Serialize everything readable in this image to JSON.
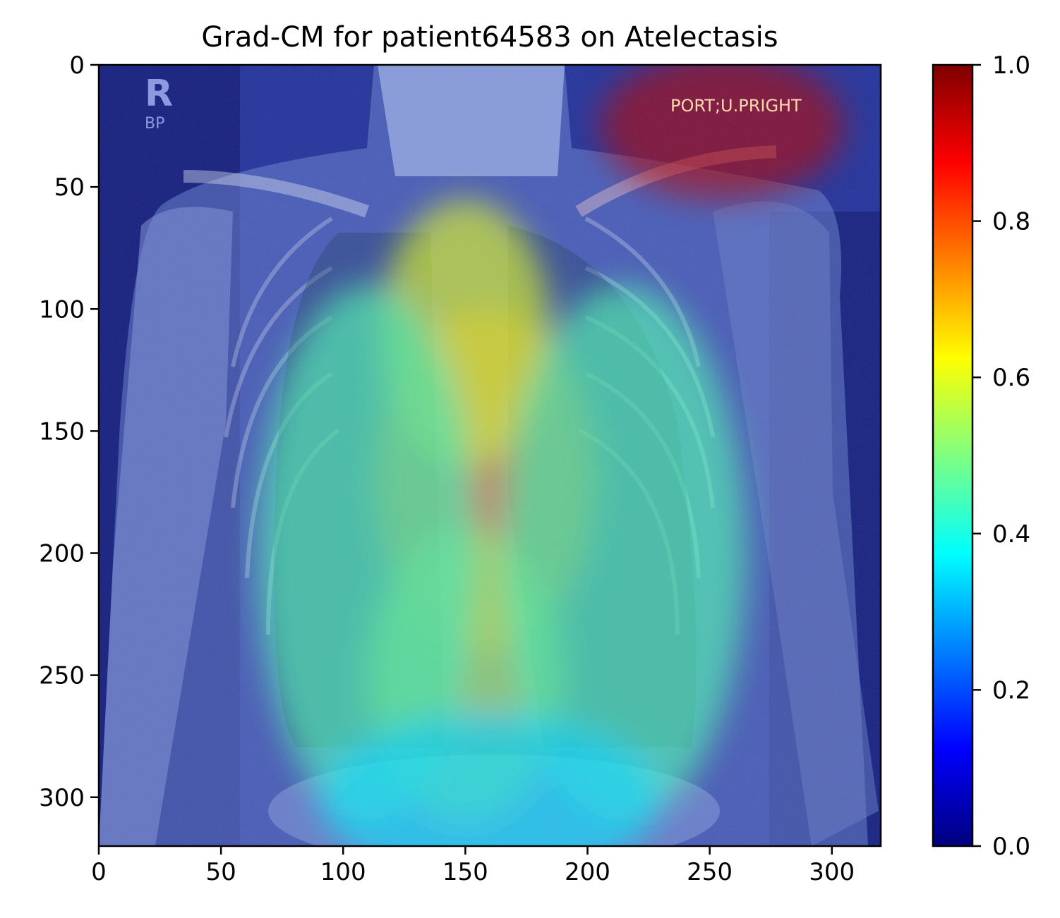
{
  "chart_data": {
    "type": "heatmap",
    "title": "Grad-CM for patient64583 on Atelectasis",
    "xlabel": "",
    "ylabel": "",
    "xlim": [
      0,
      320
    ],
    "ylim": [
      320,
      0
    ],
    "x_ticks": [
      0,
      50,
      100,
      150,
      200,
      250,
      300
    ],
    "y_ticks": [
      0,
      50,
      100,
      150,
      200,
      250,
      300
    ],
    "x_tick_labels": [
      "0",
      "50",
      "100",
      "150",
      "200",
      "250",
      "300"
    ],
    "y_tick_labels": [
      "0",
      "50",
      "100",
      "150",
      "200",
      "250",
      "300"
    ],
    "colorbar": {
      "colormap": "jet",
      "range": [
        0.0,
        1.0
      ],
      "ticks": [
        0.0,
        0.2,
        0.4,
        0.6,
        0.8,
        1.0
      ],
      "tick_labels": [
        "0.0",
        "0.2",
        "0.4",
        "0.6",
        "0.8",
        "1.0"
      ],
      "stops": [
        "#00007f",
        "#0000ff",
        "#007fff",
        "#00ffff",
        "#7fff7f",
        "#ffff00",
        "#ff7f00",
        "#ff0000",
        "#7f0000"
      ]
    },
    "background": "chest x-ray",
    "image_annotations": [
      "R",
      "BP",
      "PORT;U.PRIGHT"
    ],
    "activation_regions": [
      {
        "name": "upper-right-hotspot",
        "cx": 255,
        "cy": 25,
        "rx": 50,
        "ry": 30,
        "value": 0.95
      },
      {
        "name": "mediastinum-center",
        "cx": 158,
        "cy": 170,
        "rx": 45,
        "ry": 70,
        "value": 0.72
      },
      {
        "name": "mediastinum-upper",
        "cx": 150,
        "cy": 110,
        "rx": 35,
        "ry": 55,
        "value": 0.6
      },
      {
        "name": "mediastinum-lower",
        "cx": 150,
        "cy": 250,
        "rx": 40,
        "ry": 60,
        "value": 0.55
      },
      {
        "name": "left-lung",
        "cx": 110,
        "cy": 200,
        "rx": 45,
        "ry": 110,
        "value": 0.45
      },
      {
        "name": "right-lung",
        "cx": 215,
        "cy": 200,
        "rx": 50,
        "ry": 110,
        "value": 0.45
      },
      {
        "name": "lower-center",
        "cx": 160,
        "cy": 300,
        "rx": 70,
        "ry": 35,
        "value": 0.35
      }
    ]
  }
}
